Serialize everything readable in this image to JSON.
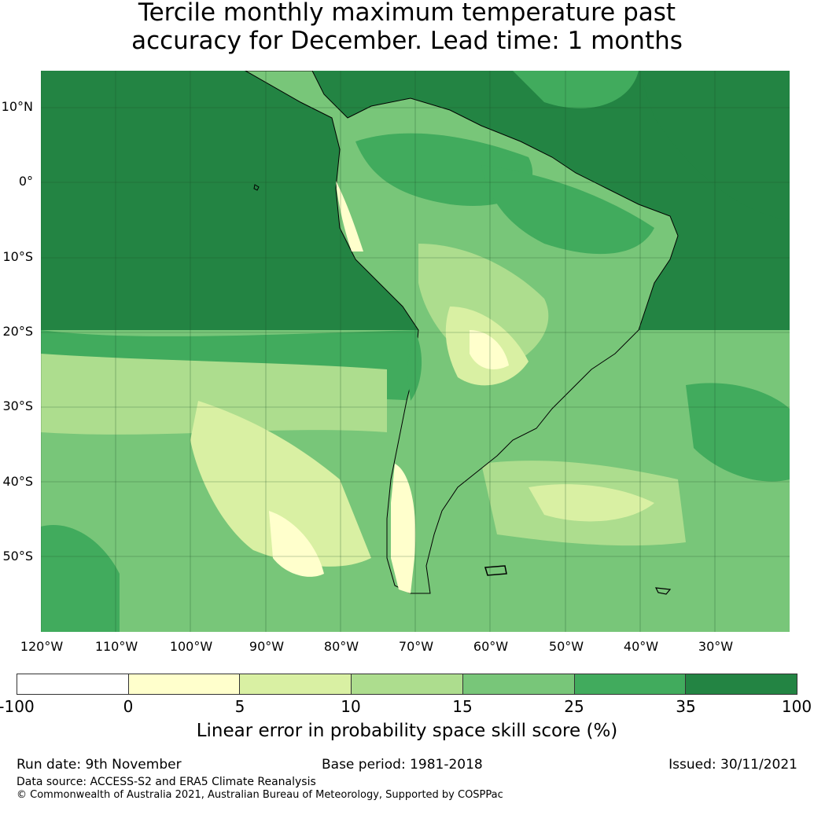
{
  "title": {
    "line1": "Tercile monthly maximum temperature past",
    "line2": "accuracy for December. Lead time: 1 months"
  },
  "map": {
    "latitude_labels": [
      "10°N",
      "0°",
      "10°S",
      "20°S",
      "30°S",
      "40°S",
      "50°S"
    ],
    "longitude_labels": [
      "120°W",
      "110°W",
      "100°W",
      "90°W",
      "80°W",
      "70°W",
      "60°W",
      "50°W",
      "40°W",
      "30°W"
    ],
    "region": "South America"
  },
  "colorbar": {
    "ticks": [
      "-100",
      "0",
      "5",
      "10",
      "15",
      "25",
      "35",
      "100"
    ],
    "colors": [
      "#ffffff",
      "#ffffcc",
      "#d9f0a3",
      "#addd8e",
      "#78c679",
      "#41ab5d",
      "#238443"
    ],
    "label": "Linear error in probability space skill score (%)"
  },
  "footer": {
    "run_date": "Run date: 9th November",
    "base_period": "Base period: 1981-2018",
    "issued": "Issued: 30/11/2021",
    "data_source": "Data source: ACCESS-S2 and ERA5 Climate Reanalysis",
    "copyright": "© Commonwealth of Australia 2021, Australian Bureau of Meteorology, Supported by COSPPac"
  }
}
